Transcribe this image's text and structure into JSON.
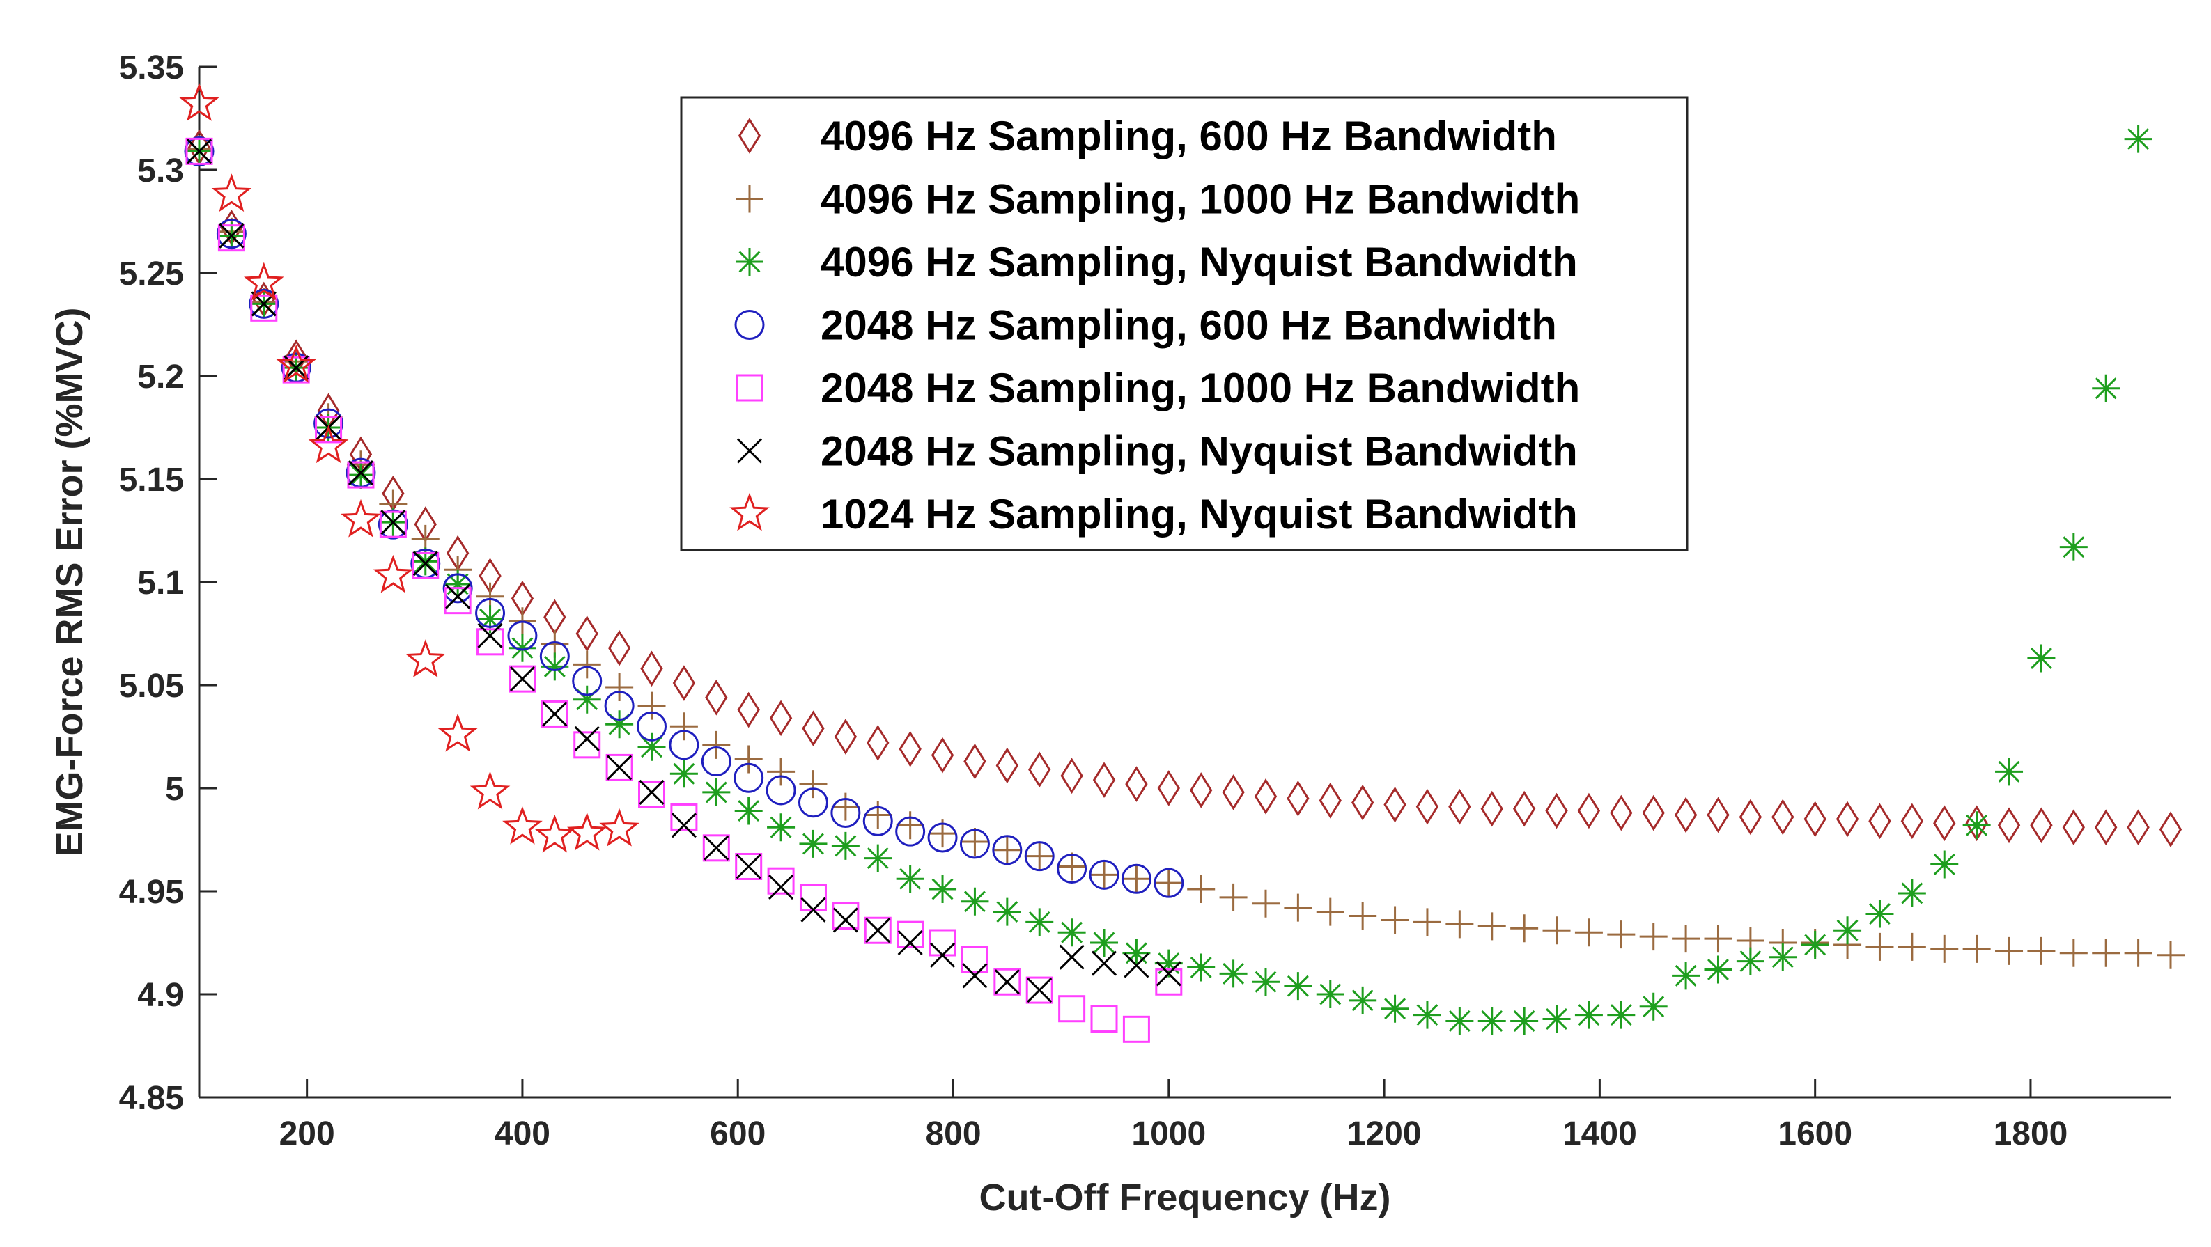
{
  "chart_data": {
    "type": "scatter",
    "xlabel": "Cut-Off Frequency (Hz)",
    "ylabel": "EMG-Force RMS Error (%MVC)",
    "xlim": [
      100,
      1930
    ],
    "ylim": [
      4.85,
      5.35
    ],
    "xticks": [
      200,
      400,
      600,
      800,
      1000,
      1200,
      1400,
      1600,
      1800
    ],
    "yticks": [
      4.85,
      4.9,
      4.95,
      5,
      5.05,
      5.1,
      5.15,
      5.2,
      5.25,
      5.3,
      5.35
    ],
    "grid": false,
    "legend_position": "top-center",
    "series": [
      {
        "name": "4096 Hz Sampling,  600 Hz Bandwidth",
        "marker": "diamond",
        "color": "#a52a2a",
        "x": [
          100,
          130,
          160,
          190,
          220,
          250,
          280,
          310,
          340,
          370,
          400,
          430,
          460,
          490,
          520,
          550,
          580,
          610,
          640,
          670,
          700,
          730,
          760,
          790,
          820,
          850,
          880,
          910,
          940,
          970,
          1000,
          1030,
          1060,
          1090,
          1120,
          1150,
          1180,
          1210,
          1240,
          1270,
          1300,
          1330,
          1360,
          1390,
          1420,
          1450,
          1480,
          1510,
          1540,
          1570,
          1600,
          1630,
          1660,
          1690,
          1720,
          1750,
          1780,
          1810,
          1840,
          1870,
          1900,
          1930
        ],
        "y": [
          5.311,
          5.272,
          5.237,
          5.209,
          5.183,
          5.162,
          5.143,
          5.128,
          5.114,
          5.103,
          5.092,
          5.083,
          5.075,
          5.068,
          5.058,
          5.051,
          5.044,
          5.038,
          5.034,
          5.029,
          5.025,
          5.022,
          5.019,
          5.016,
          5.013,
          5.011,
          5.009,
          5.006,
          5.004,
          5.002,
          5.0,
          4.999,
          4.998,
          4.996,
          4.995,
          4.994,
          4.993,
          4.992,
          4.991,
          4.991,
          4.99,
          4.99,
          4.989,
          4.989,
          4.988,
          4.988,
          4.987,
          4.987,
          4.986,
          4.986,
          4.985,
          4.985,
          4.984,
          4.984,
          4.983,
          4.983,
          4.982,
          4.982,
          4.981,
          4.981,
          4.981,
          4.98
        ]
      },
      {
        "name": "4096 Hz Sampling, 1000 Hz Bandwidth",
        "marker": "plus",
        "color": "#9b6b40",
        "x": [
          100,
          130,
          160,
          190,
          220,
          250,
          280,
          310,
          340,
          370,
          400,
          430,
          460,
          490,
          520,
          550,
          580,
          610,
          640,
          670,
          700,
          730,
          760,
          790,
          820,
          850,
          880,
          910,
          940,
          970,
          1000,
          1030,
          1060,
          1090,
          1120,
          1150,
          1180,
          1210,
          1240,
          1270,
          1300,
          1330,
          1360,
          1390,
          1420,
          1450,
          1480,
          1510,
          1540,
          1570,
          1600,
          1630,
          1660,
          1690,
          1720,
          1750,
          1780,
          1810,
          1840,
          1870,
          1900,
          1930
        ],
        "y": [
          5.31,
          5.27,
          5.236,
          5.207,
          5.18,
          5.157,
          5.138,
          5.121,
          5.106,
          5.093,
          5.081,
          5.07,
          5.06,
          5.049,
          5.04,
          5.03,
          5.021,
          5.014,
          5.008,
          5.002,
          4.991,
          4.987,
          4.982,
          4.978,
          4.974,
          4.97,
          4.967,
          4.962,
          4.958,
          4.956,
          4.954,
          4.951,
          4.947,
          4.944,
          4.942,
          4.94,
          4.938,
          4.936,
          4.935,
          4.934,
          4.933,
          4.932,
          4.931,
          4.93,
          4.929,
          4.928,
          4.927,
          4.927,
          4.926,
          4.925,
          4.925,
          4.924,
          4.923,
          4.923,
          4.922,
          4.922,
          4.921,
          4.921,
          4.92,
          4.92,
          4.92,
          4.919
        ]
      },
      {
        "name": "4096 Hz Sampling, Nyquist Bandwidth",
        "marker": "asterisk",
        "color": "#1e9e1e",
        "x": [
          100,
          130,
          160,
          190,
          220,
          250,
          280,
          310,
          340,
          370,
          400,
          430,
          460,
          490,
          520,
          550,
          580,
          610,
          640,
          670,
          700,
          730,
          760,
          790,
          820,
          850,
          880,
          910,
          940,
          970,
          1000,
          1030,
          1060,
          1090,
          1120,
          1150,
          1180,
          1210,
          1240,
          1270,
          1300,
          1330,
          1360,
          1390,
          1420,
          1450,
          1480,
          1510,
          1540,
          1570,
          1600,
          1630,
          1660,
          1690,
          1720,
          1750,
          1780,
          1810,
          1840,
          1870,
          1900
        ],
        "y": [
          5.309,
          5.268,
          5.235,
          5.204,
          5.175,
          5.152,
          5.129,
          5.11,
          5.099,
          5.082,
          5.068,
          5.059,
          5.043,
          5.031,
          5.02,
          5.007,
          4.998,
          4.989,
          4.981,
          4.973,
          4.972,
          4.966,
          4.956,
          4.951,
          4.945,
          4.94,
          4.935,
          4.93,
          4.925,
          4.92,
          4.915,
          4.913,
          4.91,
          4.906,
          4.904,
          4.9,
          4.897,
          4.893,
          4.89,
          4.887,
          4.887,
          4.887,
          4.888,
          4.89,
          4.89,
          4.894,
          4.909,
          4.912,
          4.916,
          4.918,
          4.924,
          4.931,
          4.939,
          4.949,
          4.963,
          4.982,
          5.008,
          5.063,
          5.117,
          5.194,
          5.315
        ]
      },
      {
        "name": "2048 Hz Sampling,  600 Hz Bandwidth",
        "marker": "circle",
        "color": "#1f1fbf",
        "x": [
          100,
          130,
          160,
          190,
          220,
          250,
          280,
          310,
          340,
          370,
          400,
          430,
          460,
          490,
          520,
          550,
          580,
          610,
          640,
          670,
          700,
          730,
          760,
          790,
          820,
          850,
          880,
          910,
          940,
          970,
          1000
        ],
        "y": [
          5.309,
          5.269,
          5.235,
          5.204,
          5.177,
          5.153,
          5.128,
          5.109,
          5.097,
          5.085,
          5.074,
          5.064,
          5.052,
          5.04,
          5.03,
          5.021,
          5.013,
          5.005,
          4.999,
          4.993,
          4.988,
          4.984,
          4.979,
          4.976,
          4.973,
          4.97,
          4.967,
          4.961,
          4.958,
          4.956,
          4.954
        ]
      },
      {
        "name": "2048 Hz Sampling, 1000 Hz Bandwidth",
        "marker": "square",
        "color": "#ff40ff",
        "x": [
          100,
          130,
          160,
          190,
          220,
          250,
          280,
          310,
          340,
          370,
          400,
          430,
          460,
          490,
          520,
          550,
          580,
          610,
          640,
          670,
          700,
          730,
          760,
          790,
          820,
          850,
          880,
          910,
          940,
          970,
          1000
        ],
        "y": [
          5.309,
          5.267,
          5.233,
          5.203,
          5.174,
          5.152,
          5.128,
          5.108,
          5.091,
          5.071,
          5.053,
          5.036,
          5.021,
          5.01,
          4.997,
          4.986,
          4.971,
          4.962,
          4.955,
          4.947,
          4.938,
          4.931,
          4.929,
          4.925,
          4.917,
          4.906,
          4.902,
          4.893,
          4.888,
          4.883,
          4.906
        ]
      },
      {
        "name": "2048 Hz Sampling, Nyquist Bandwidth",
        "marker": "x",
        "color": "#000000",
        "x": [
          100,
          130,
          160,
          190,
          220,
          250,
          280,
          310,
          340,
          370,
          400,
          430,
          460,
          490,
          520,
          550,
          580,
          610,
          640,
          670,
          700,
          730,
          760,
          790,
          820,
          850,
          880,
          910,
          940,
          970,
          1000
        ],
        "y": [
          5.309,
          5.268,
          5.235,
          5.204,
          5.175,
          5.153,
          5.129,
          5.109,
          5.093,
          5.074,
          5.053,
          5.036,
          5.024,
          5.01,
          4.998,
          4.982,
          4.971,
          4.962,
          4.952,
          4.941,
          4.936,
          4.931,
          4.925,
          4.919,
          4.909,
          4.906,
          4.902,
          4.918,
          4.915,
          4.914,
          4.91
        ]
      },
      {
        "name": "1024 Hz Sampling, Nyquist Bandwidth",
        "marker": "star",
        "color": "#e02020",
        "x": [
          100,
          130,
          160,
          190,
          220,
          250,
          280,
          310,
          340,
          370,
          400,
          430,
          460,
          490
        ],
        "y": [
          5.332,
          5.288,
          5.245,
          5.205,
          5.166,
          5.13,
          5.103,
          5.062,
          5.026,
          4.998,
          4.981,
          4.977,
          4.978,
          4.98
        ]
      }
    ]
  }
}
